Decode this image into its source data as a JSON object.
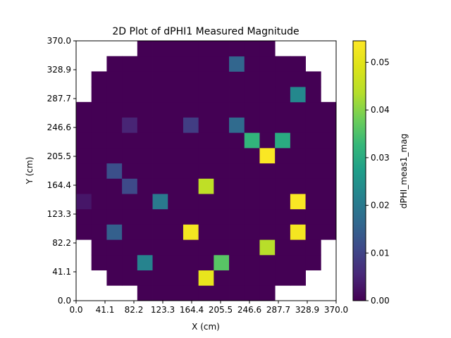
{
  "chart_data": {
    "type": "heatmap",
    "title": "2D Plot of dPHI1 Measured Magnitude",
    "xlabel": "X (cm)",
    "ylabel": "Y (cm)",
    "xlim": [
      0.0,
      370.0
    ],
    "ylim": [
      0.0,
      370.0
    ],
    "x_ticks": [
      "0.0",
      "41.1",
      "82.2",
      "123.3",
      "164.4",
      "205.5",
      "246.6",
      "287.7",
      "328.9",
      "370.0"
    ],
    "y_ticks": [
      "0.0",
      "41.1",
      "82.2",
      "123.3",
      "164.4",
      "205.5",
      "246.6",
      "287.7",
      "328.9",
      "370.0"
    ],
    "colorbar": {
      "label": "dPHI_meas1_mag",
      "min": 0.0,
      "max": 0.0545,
      "ticks": [
        "0.00",
        "0.01",
        "0.02",
        "0.03",
        "0.04",
        "0.05"
      ],
      "colormap": "viridis"
    },
    "grid": false,
    "n_cols": 17,
    "n_rows": 17,
    "cell_size_cm": 21.765,
    "row_spans": [
      [
        4,
        12
      ],
      [
        2,
        14
      ],
      [
        1,
        15
      ],
      [
        1,
        15
      ],
      [
        0,
        16
      ],
      [
        0,
        16
      ],
      [
        0,
        16
      ],
      [
        0,
        16
      ],
      [
        0,
        16
      ],
      [
        0,
        16
      ],
      [
        0,
        16
      ],
      [
        0,
        16
      ],
      [
        0,
        16
      ],
      [
        1,
        15
      ],
      [
        1,
        15
      ],
      [
        2,
        14
      ],
      [
        4,
        12
      ]
    ],
    "cells": [
      {
        "col": 8,
        "row": 1,
        "value": 0.051
      },
      {
        "col": 4,
        "row": 2,
        "value": 0.022
      },
      {
        "col": 9,
        "row": 2,
        "value": 0.036
      },
      {
        "col": 12,
        "row": 3,
        "value": 0.044
      },
      {
        "col": 2,
        "row": 4,
        "value": 0.015
      },
      {
        "col": 7,
        "row": 4,
        "value": 0.053
      },
      {
        "col": 14,
        "row": 4,
        "value": 0.053
      },
      {
        "col": 5,
        "row": 6,
        "value": 0.02
      },
      {
        "col": 14,
        "row": 6,
        "value": 0.054
      },
      {
        "col": 0,
        "row": 6,
        "value": 0.003
      },
      {
        "col": 3,
        "row": 7,
        "value": 0.011
      },
      {
        "col": 8,
        "row": 7,
        "value": 0.045
      },
      {
        "col": 2,
        "row": 8,
        "value": 0.012
      },
      {
        "col": 12,
        "row": 9,
        "value": 0.054
      },
      {
        "col": 11,
        "row": 10,
        "value": 0.032
      },
      {
        "col": 13,
        "row": 10,
        "value": 0.03
      },
      {
        "col": 3,
        "row": 11,
        "value": 0.005
      },
      {
        "col": 7,
        "row": 11,
        "value": 0.009
      },
      {
        "col": 10,
        "row": 11,
        "value": 0.017
      },
      {
        "col": 14,
        "row": 13,
        "value": 0.023
      },
      {
        "col": 10,
        "row": 15,
        "value": 0.016
      }
    ]
  }
}
